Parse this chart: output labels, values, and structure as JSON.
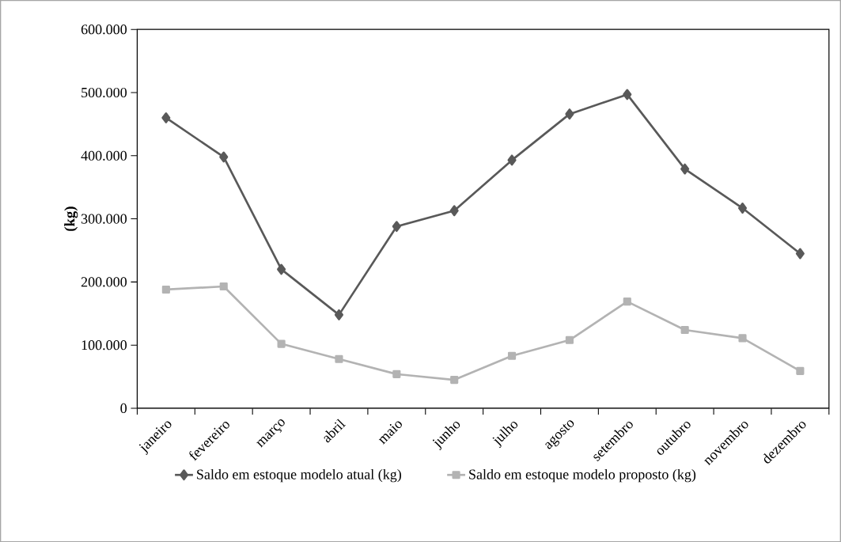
{
  "chart_data": {
    "type": "line",
    "ylabel": "(kg)",
    "categories": [
      "janeiro",
      "fevereiro",
      "março",
      "abril",
      "maio",
      "junho",
      "julho",
      "agosto",
      "setembro",
      "outubro",
      "novembro",
      "dezembro"
    ],
    "series": [
      {
        "name": "Saldo em estoque modelo atual (kg)",
        "color": "#595959",
        "marker": "diamond",
        "values": [
          460000,
          398000,
          220000,
          148000,
          288000,
          313000,
          393000,
          466000,
          497000,
          379000,
          317000,
          245000
        ]
      },
      {
        "name": "Saldo em estoque modelo proposto (kg)",
        "color": "#b3b3b3",
        "marker": "square",
        "values": [
          188000,
          193000,
          102000,
          78000,
          54000,
          45000,
          83000,
          108000,
          169000,
          124000,
          111000,
          59000
        ]
      }
    ],
    "ylim": [
      0,
      600000
    ],
    "yticks": [
      0,
      {
        "value": 100000,
        "label": "100.000"
      },
      {
        "value": 200000,
        "label": "200.000"
      },
      {
        "value": 300000,
        "label": "300.000"
      },
      {
        "value": 400000,
        "label": "400.000"
      },
      {
        "value": 500000,
        "label": "500.000"
      },
      {
        "value": 600000,
        "label": "600.000"
      }
    ],
    "grid": false,
    "legend": "bottom",
    "line_style": "solid"
  }
}
